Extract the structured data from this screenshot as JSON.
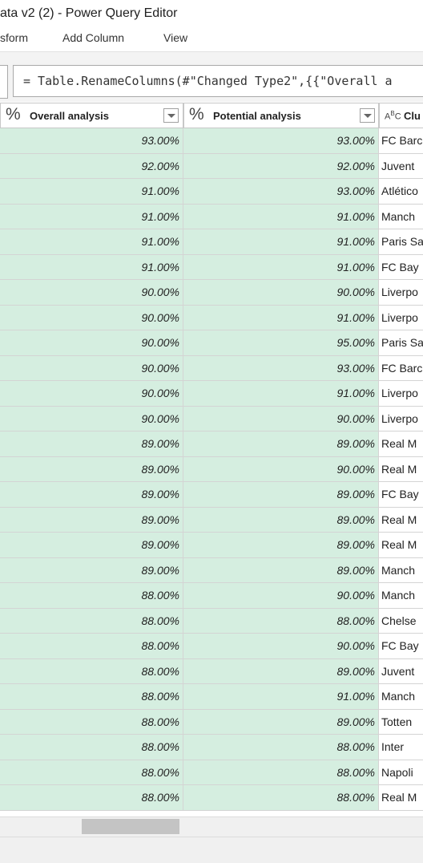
{
  "window": {
    "title": "ata v2 (2) - Power Query Editor"
  },
  "ribbon": {
    "tabs": [
      "sform",
      "Add Column",
      "View"
    ]
  },
  "formula": {
    "text": "= Table.RenameColumns(#\"Changed Type2\",{{\"Overall a"
  },
  "columns": [
    {
      "type_icon": "%",
      "label": "Overall analysis"
    },
    {
      "type_icon": "%",
      "label": "Potential analysis"
    },
    {
      "type_icon": "ABC",
      "label": "Clu"
    }
  ],
  "rows": [
    [
      "93.00%",
      "93.00%",
      "FC Barc"
    ],
    [
      "92.00%",
      "92.00%",
      "Juvent"
    ],
    [
      "91.00%",
      "93.00%",
      "Atlético"
    ],
    [
      "91.00%",
      "91.00%",
      "Manch"
    ],
    [
      "91.00%",
      "91.00%",
      "Paris Sa"
    ],
    [
      "91.00%",
      "91.00%",
      "FC Bay"
    ],
    [
      "90.00%",
      "90.00%",
      "Liverpo"
    ],
    [
      "90.00%",
      "91.00%",
      "Liverpo"
    ],
    [
      "90.00%",
      "95.00%",
      "Paris Sa"
    ],
    [
      "90.00%",
      "93.00%",
      "FC Barc"
    ],
    [
      "90.00%",
      "91.00%",
      "Liverpo"
    ],
    [
      "90.00%",
      "90.00%",
      "Liverpo"
    ],
    [
      "89.00%",
      "89.00%",
      "Real M"
    ],
    [
      "89.00%",
      "90.00%",
      "Real M"
    ],
    [
      "89.00%",
      "89.00%",
      "FC Bay"
    ],
    [
      "89.00%",
      "89.00%",
      "Real M"
    ],
    [
      "89.00%",
      "89.00%",
      "Real M"
    ],
    [
      "89.00%",
      "89.00%",
      "Manch"
    ],
    [
      "88.00%",
      "90.00%",
      "Manch"
    ],
    [
      "88.00%",
      "88.00%",
      "Chelse"
    ],
    [
      "88.00%",
      "90.00%",
      "FC Bay"
    ],
    [
      "88.00%",
      "89.00%",
      "Juvent"
    ],
    [
      "88.00%",
      "91.00%",
      "Manch"
    ],
    [
      "88.00%",
      "89.00%",
      "Totten"
    ],
    [
      "88.00%",
      "88.00%",
      "Inter"
    ],
    [
      "88.00%",
      "88.00%",
      "Napoli"
    ],
    [
      "88.00%",
      "88.00%",
      "Real M"
    ]
  ],
  "colors": {
    "selected_column_bg": "#d5eee0",
    "grid_border": "#d4d4d4"
  }
}
